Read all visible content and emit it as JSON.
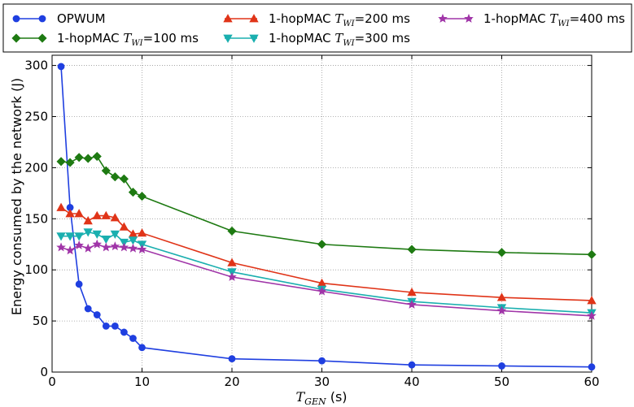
{
  "chart_data": {
    "type": "line",
    "xlabel": "T_GEN (s)",
    "xlabel_main": "T",
    "xlabel_sub": "GEN",
    "xlabel_unit": " (s)",
    "ylabel": "Energy consumed by the network (J)",
    "xlim": [
      0,
      60
    ],
    "ylim": [
      0,
      310
    ],
    "xticks": [
      0,
      10,
      20,
      30,
      40,
      50,
      60
    ],
    "yticks": [
      0,
      50,
      100,
      150,
      200,
      250,
      300
    ],
    "grid": true,
    "legend_position": "top",
    "x": [
      1,
      2,
      3,
      4,
      5,
      6,
      7,
      8,
      9,
      10,
      20,
      30,
      40,
      50,
      60
    ],
    "series": [
      {
        "name": "OPWUM",
        "legend_prefix": "OPWUM",
        "legend_sub": "",
        "legend_suffix": "",
        "color": "#1f3fe0",
        "marker": "circle",
        "values": [
          299,
          161,
          86,
          62,
          56,
          45,
          45,
          39,
          33,
          24,
          13,
          11,
          7,
          6,
          5
        ]
      },
      {
        "name": "1-hopMAC T_WI=100 ms",
        "legend_prefix": "1-hopMAC T",
        "legend_sub": "WI",
        "legend_suffix": "=100 ms",
        "color": "#1e7a12",
        "marker": "diamond",
        "values": [
          206,
          205,
          210,
          209,
          211,
          197,
          191,
          189,
          176,
          172,
          138,
          125,
          120,
          117,
          115
        ]
      },
      {
        "name": "1-hopMAC T_WI=200 ms",
        "legend_prefix": "1-hopMAC T",
        "legend_sub": "WI",
        "legend_suffix": "=200 ms",
        "color": "#e03418",
        "marker": "triangle-up",
        "values": [
          161,
          155,
          155,
          148,
          153,
          153,
          151,
          142,
          135,
          136,
          107,
          87,
          78,
          73,
          70
        ]
      },
      {
        "name": "1-hopMAC T_WI=300 ms",
        "legend_prefix": "1-hopMAC T",
        "legend_sub": "WI",
        "legend_suffix": "=300 ms",
        "color": "#1aafaf",
        "marker": "triangle-down",
        "values": [
          133,
          133,
          133,
          137,
          135,
          130,
          135,
          127,
          129,
          125,
          98,
          81,
          69,
          63,
          58
        ]
      },
      {
        "name": "1-hopMAC T_WI=400 ms",
        "legend_prefix": "1-hopMAC T",
        "legend_sub": "WI",
        "legend_suffix": "=400 ms",
        "color": "#a035a8",
        "marker": "star",
        "values": [
          122,
          119,
          124,
          121,
          125,
          122,
          123,
          122,
          121,
          120,
          93,
          79,
          66,
          60,
          55
        ]
      }
    ]
  }
}
